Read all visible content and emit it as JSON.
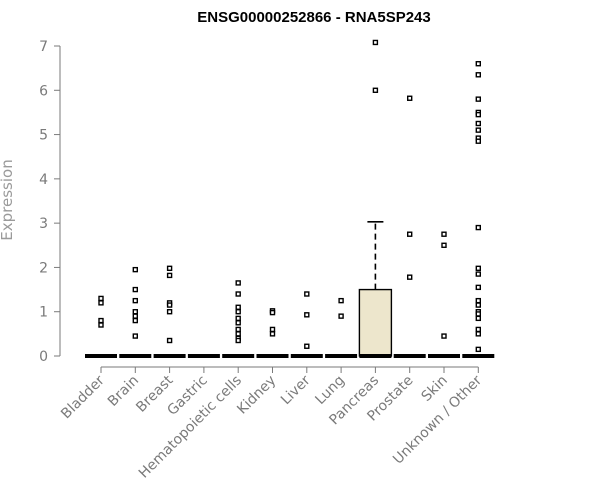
{
  "chart_data": {
    "type": "box",
    "title": "ENSG00000252866 - RNA5SP243",
    "xlabel": "",
    "ylabel": "Expression",
    "ylim": [
      0,
      7
    ],
    "yticks": [
      0,
      1,
      2,
      3,
      4,
      5,
      6,
      7
    ],
    "box_fill": "#ede6cc",
    "grid": false,
    "categories": [
      {
        "name": "Bladder",
        "median": 0,
        "q1": 0,
        "q3": 0,
        "whisker_low": 0,
        "whisker_high": 0,
        "outliers": [
          1.3,
          1.2,
          0.8,
          0.7
        ]
      },
      {
        "name": "Brain",
        "median": 0,
        "q1": 0,
        "q3": 0,
        "whisker_low": 0,
        "whisker_high": 0,
        "outliers": [
          1.95,
          1.5,
          1.25,
          1.0,
          0.9,
          0.8,
          0.45
        ]
      },
      {
        "name": "Breast",
        "median": 0,
        "q1": 0,
        "q3": 0,
        "whisker_low": 0,
        "whisker_high": 0,
        "outliers": [
          1.98,
          1.82,
          1.2,
          1.15,
          1.0,
          0.35
        ]
      },
      {
        "name": "Gastric",
        "median": 0,
        "q1": 0,
        "q3": 0,
        "whisker_low": 0,
        "whisker_high": 0,
        "outliers": []
      },
      {
        "name": "Hematopoietic cells",
        "median": 0,
        "q1": 0,
        "q3": 0,
        "whisker_low": 0,
        "whisker_high": 0,
        "outliers": [
          1.65,
          1.4,
          1.1,
          1.0,
          0.85,
          0.75,
          0.6,
          0.5,
          0.4,
          0.35
        ]
      },
      {
        "name": "Kidney",
        "median": 0,
        "q1": 0,
        "q3": 0,
        "whisker_low": 0,
        "whisker_high": 0,
        "outliers": [
          1.02,
          0.98,
          0.6,
          0.5
        ]
      },
      {
        "name": "Liver",
        "median": 0,
        "q1": 0,
        "q3": 0,
        "whisker_low": 0,
        "whisker_high": 0,
        "outliers": [
          1.4,
          0.93,
          0.22
        ]
      },
      {
        "name": "Lung",
        "median": 0,
        "q1": 0,
        "q3": 0,
        "whisker_low": 0,
        "whisker_high": 0,
        "outliers": [
          1.25,
          0.9
        ]
      },
      {
        "name": "Pancreas",
        "median": 0,
        "q1": 0,
        "q3": 1.5,
        "whisker_low": 0,
        "whisker_high": 3.03,
        "outliers": [
          7.08,
          6.0
        ]
      },
      {
        "name": "Prostate",
        "median": 0,
        "q1": 0,
        "q3": 0,
        "whisker_low": 0,
        "whisker_high": 0,
        "outliers": [
          5.82,
          2.75,
          1.78
        ]
      },
      {
        "name": "Skin",
        "median": 0,
        "q1": 0,
        "q3": 0,
        "whisker_low": 0,
        "whisker_high": 0,
        "outliers": [
          2.75,
          2.5,
          0.45
        ]
      },
      {
        "name": "Unknown / Other",
        "median": 0,
        "q1": 0,
        "q3": 0,
        "whisker_low": 0,
        "whisker_high": 0,
        "outliers": [
          6.6,
          6.35,
          5.8,
          5.5,
          5.45,
          5.25,
          5.1,
          4.92,
          4.85,
          2.9,
          1.98,
          1.85,
          1.55,
          1.25,
          1.15,
          1.0,
          0.95,
          0.85,
          0.6,
          0.5,
          0.15
        ]
      }
    ]
  }
}
